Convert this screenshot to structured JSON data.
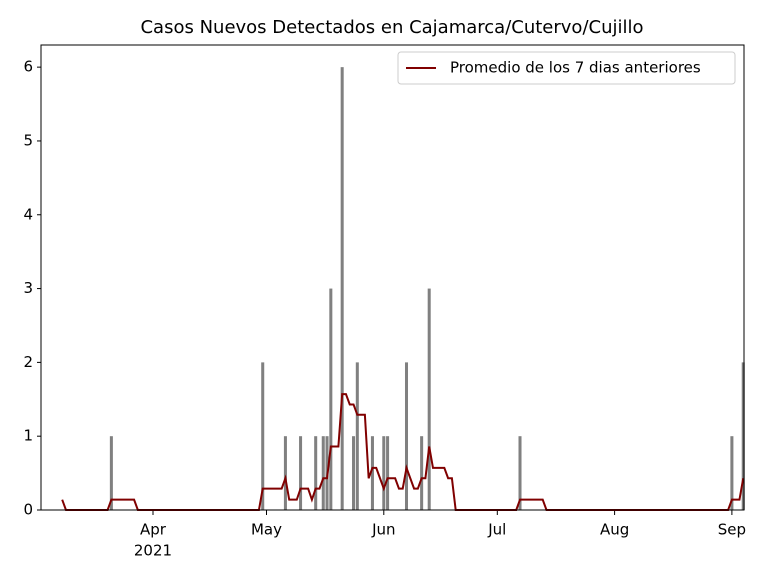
{
  "chart_data": {
    "type": "bar",
    "title": "Casos Nuevos Detectados en Cajamarca/Cutervo/Cujillo",
    "xlim": [
      61.4,
      247.2
    ],
    "xticks": [
      {
        "value": 91,
        "label": "Apr"
      },
      {
        "value": 121,
        "label": "May"
      },
      {
        "value": 152,
        "label": "Jun"
      },
      {
        "value": 182,
        "label": "Jul"
      },
      {
        "value": 213,
        "label": "Aug"
      },
      {
        "value": 244,
        "label": "Sep"
      }
    ],
    "x_year_label": "2021",
    "ylim": [
      0,
      6.3
    ],
    "yticks": [
      0,
      1,
      2,
      3,
      4,
      5,
      6
    ],
    "legend": "upper right",
    "series": [
      {
        "type": "bar",
        "color": "#808080",
        "x": [
          80,
          120,
          126,
          130,
          134,
          136,
          137,
          138,
          141,
          144,
          145,
          149,
          152,
          153,
          158,
          162,
          164,
          188,
          244,
          247
        ],
        "values": [
          1,
          2,
          1,
          1,
          1,
          1,
          1,
          3,
          6,
          1,
          2,
          1,
          1,
          1,
          2,
          1,
          3,
          1,
          1,
          2
        ]
      },
      {
        "type": "line",
        "name": "Promedio de los 7 dias anteriores",
        "color": "#800000",
        "x": [
          67,
          68,
          79,
          80,
          86,
          87,
          119,
          120,
          125,
          126,
          127,
          129,
          130,
          132,
          133,
          134,
          135,
          136,
          137,
          138,
          140,
          141,
          142,
          143,
          144,
          145,
          147,
          148,
          149,
          150,
          151,
          152,
          153,
          155,
          156,
          157,
          158,
          159,
          160,
          161,
          162,
          163,
          164,
          165,
          168,
          169,
          170,
          171,
          187,
          188,
          194,
          195,
          243,
          244,
          246,
          247
        ],
        "values": [
          0.14,
          0,
          0,
          0.14,
          0.14,
          0,
          0,
          0.29,
          0.29,
          0.43,
          0.14,
          0.14,
          0.29,
          0.29,
          0.14,
          0.29,
          0.29,
          0.43,
          0.43,
          0.86,
          0.86,
          1.57,
          1.57,
          1.43,
          1.43,
          1.29,
          1.29,
          0.43,
          0.57,
          0.57,
          0.43,
          0.29,
          0.43,
          0.43,
          0.29,
          0.29,
          0.57,
          0.43,
          0.29,
          0.29,
          0.43,
          0.43,
          0.86,
          0.57,
          0.57,
          0.43,
          0.43,
          0,
          0,
          0.14,
          0.14,
          0,
          0,
          0.14,
          0.14,
          0.43
        ]
      }
    ]
  }
}
